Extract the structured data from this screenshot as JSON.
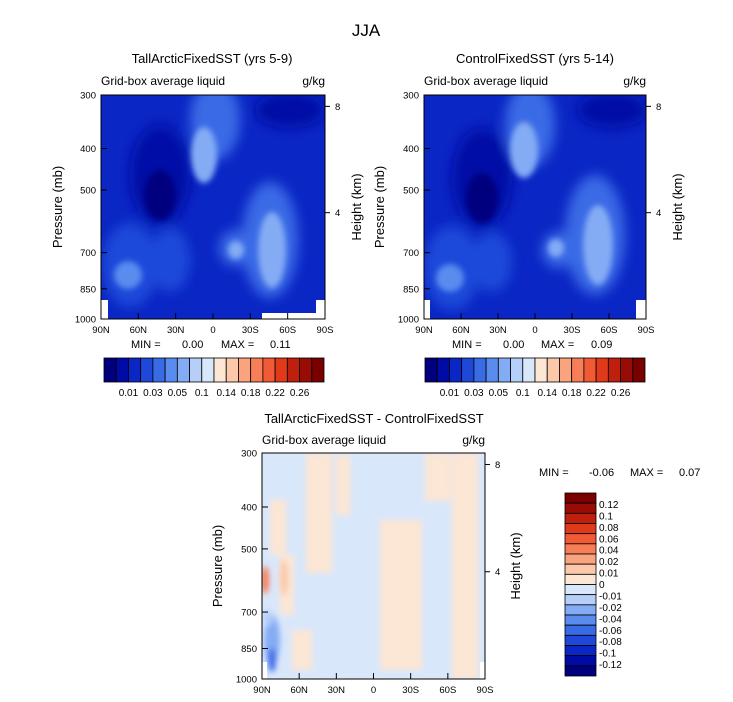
{
  "figure": {
    "title": "JJA"
  },
  "colors": {
    "cold": [
      "#00007f",
      "#000ba6",
      "#0a26c4",
      "#1f48d9",
      "#3a6be6",
      "#5a8bef",
      "#84acf5",
      "#b6cff9",
      "#d9e7fb"
    ],
    "warm": [
      "#fce6d4",
      "#fbc8aa",
      "#f9a47e",
      "#f77e57",
      "#f25a35",
      "#e03a1b",
      "#bf1f0c",
      "#990c05",
      "#7a0000"
    ],
    "land": "#ffffff"
  },
  "chart_data": [
    {
      "id": "tall",
      "type": "heatmap",
      "title": "TallArcticFixedSST (yrs 5-9)",
      "subtitle_left": "Grid-box average liquid",
      "subtitle_right": "g/kg",
      "xlabel": "",
      "ylabel": "Pressure (mb)",
      "y2label": "Height (km)",
      "x_ticks": [
        "90N",
        "60N",
        "30N",
        "0",
        "30S",
        "60S",
        "90S"
      ],
      "y_ticks": [
        "300",
        "400",
        "500",
        "700",
        "850",
        "1000"
      ],
      "y2_ticks": [
        "8",
        "4"
      ],
      "ylim": [
        300,
        1000
      ],
      "stat": {
        "min_label": "MIN =",
        "min": "0.00",
        "max_label": "MAX =",
        "max": "0.11"
      },
      "colorbar": {
        "orientation": "horizontal",
        "labels": [
          "0.01",
          "0.03",
          "0.05",
          "0.1",
          "0.14",
          "0.18",
          "0.22",
          "0.26"
        ]
      }
    },
    {
      "id": "control",
      "type": "heatmap",
      "title": "ControlFixedSST (yrs 5-14)",
      "subtitle_left": "Grid-box average liquid",
      "subtitle_right": "g/kg",
      "xlabel": "",
      "ylabel": "Pressure (mb)",
      "y2label": "Height (km)",
      "x_ticks": [
        "90N",
        "60N",
        "30N",
        "0",
        "30S",
        "60S",
        "90S"
      ],
      "y_ticks": [
        "300",
        "400",
        "500",
        "700",
        "850",
        "1000"
      ],
      "y2_ticks": [
        "8",
        "4"
      ],
      "ylim": [
        300,
        1000
      ],
      "stat": {
        "min_label": "MIN =",
        "min": "0.00",
        "max_label": "MAX =",
        "max": "0.09"
      },
      "colorbar": {
        "orientation": "horizontal",
        "labels": [
          "0.01",
          "0.03",
          "0.05",
          "0.1",
          "0.14",
          "0.18",
          "0.22",
          "0.26"
        ]
      }
    },
    {
      "id": "diff",
      "type": "heatmap",
      "title": "TallArcticFixedSST - ControlFixedSST",
      "subtitle_left": "Grid-box average liquid",
      "subtitle_right": "g/kg",
      "xlabel": "",
      "ylabel": "Pressure (mb)",
      "y2label": "Height (km)",
      "x_ticks": [
        "90N",
        "60N",
        "30N",
        "0",
        "30S",
        "60S",
        "90S"
      ],
      "y_ticks": [
        "300",
        "400",
        "500",
        "700",
        "850",
        "1000"
      ],
      "y2_ticks": [
        "8",
        "4"
      ],
      "ylim": [
        300,
        1000
      ],
      "stat": {
        "min_label": "MIN =",
        "min": "-0.06",
        "max_label": "MAX =",
        "max": "0.07"
      },
      "colorbar": {
        "orientation": "vertical",
        "labels": [
          "0.12",
          "0.1",
          "0.08",
          "0.06",
          "0.04",
          "0.02",
          "0.01",
          "0",
          "-0.01",
          "-0.02",
          "-0.04",
          "-0.06",
          "-0.08",
          "-0.1",
          "-0.12"
        ]
      }
    }
  ]
}
